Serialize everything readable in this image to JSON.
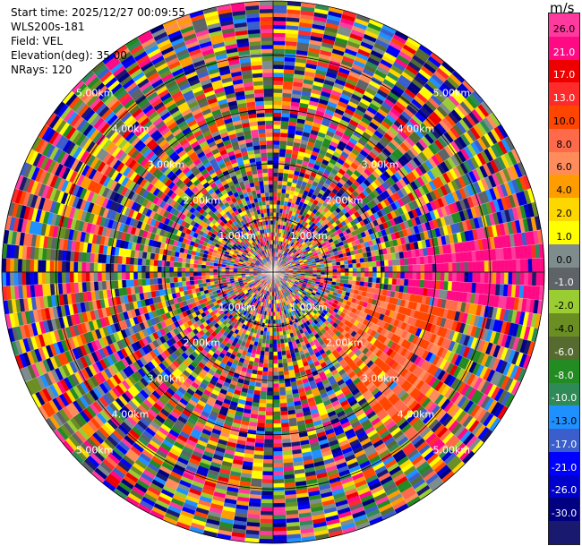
{
  "header": {
    "start_time": "Start time: 2025/12/27 00:09:55",
    "instrument": "WLS200s-181",
    "field": "Field: VEL",
    "elevation": "Elevation(deg): 35.00",
    "nrays": "NRays: 120"
  },
  "colorbar": {
    "unit": "m/s",
    "bins": [
      {
        "label": "26.0",
        "color": "#ff3a9e"
      },
      {
        "label": "21.0",
        "color": "#ff0a84"
      },
      {
        "label": "17.0",
        "color": "#ee0000"
      },
      {
        "label": "13.0",
        "color": "#ff2a2a"
      },
      {
        "label": "10.0",
        "color": "#ff4500"
      },
      {
        "label": "8.0",
        "color": "#ff6a4a"
      },
      {
        "label": "6.0",
        "color": "#ff8c5a"
      },
      {
        "label": "4.0",
        "color": "#ff9d00"
      },
      {
        "label": "2.0",
        "color": "#ffd700"
      },
      {
        "label": "1.0",
        "color": "#ffff00"
      },
      {
        "label": "0.0",
        "color": "#7f8c8d"
      },
      {
        "label": "-1.0",
        "color": "#5e6367"
      },
      {
        "label": "-2.0",
        "color": "#9acd32"
      },
      {
        "label": "-4.0",
        "color": "#6b8e23"
      },
      {
        "label": "-6.0",
        "color": "#556b2f"
      },
      {
        "label": "-8.0",
        "color": "#228b22"
      },
      {
        "label": "-10.0",
        "color": "#2e8b57"
      },
      {
        "label": "-13.0",
        "color": "#1e90ff"
      },
      {
        "label": "-17.0",
        "color": "#3a5fcd"
      },
      {
        "label": "-21.0",
        "color": "#0000ff"
      },
      {
        "label": "-26.0",
        "color": "#0000cd"
      },
      {
        "label": "-30.0",
        "color": "#000080"
      },
      {
        "label": "",
        "color": "#191970"
      }
    ]
  },
  "chart_data": {
    "type": "heatmap",
    "projection": "polar PPI scan",
    "field": "VEL",
    "units": "m/s",
    "elevation_deg": 35.0,
    "n_rays": 120,
    "range_rings_km": [
      1.0,
      2.0,
      3.0,
      4.0,
      5.0
    ],
    "range_ring_labels": [
      "1.00km",
      "2.00km",
      "3.00km",
      "4.00km",
      "5.00km"
    ],
    "max_range_km": 5.0,
    "radial_grid": "crosshair N-S / E-W plus spokes every 3 deg",
    "value_range": [
      -30,
      26
    ],
    "features": [
      {
        "sector_deg": [
          80,
          100
        ],
        "range_km": [
          2.5,
          5.0
        ],
        "dominant_value_ms": 24,
        "note": "coherent positive (pink) region east"
      },
      {
        "sector_deg": [
          100,
          145
        ],
        "range_km": [
          1.5,
          3.5
        ],
        "dominant_value_ms": 10,
        "note": "orange-red band south-east"
      },
      {
        "sector_deg": [
          0,
          360
        ],
        "range_km": [
          0,
          1.5
        ],
        "dominant_value_ms": 0,
        "note": "mixed near-zero core"
      }
    ]
  }
}
